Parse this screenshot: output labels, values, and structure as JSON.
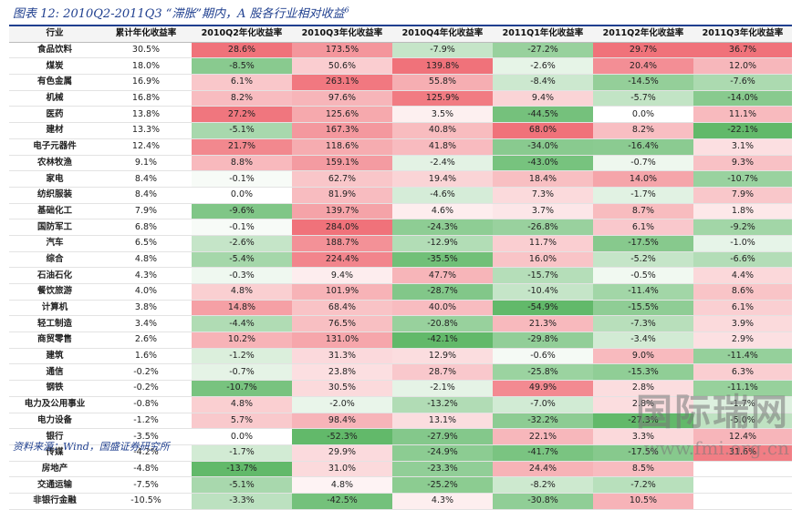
{
  "title": "图表 12: 2010Q2-2011Q3 “滞胀”期内，A 股各行业相对收益",
  "title_sup": "6",
  "source": "资料来源：Wind，国盛证券研究所",
  "watermark": {
    "logo_text": "国际瑞网",
    "sub_text": "www.fmi.org.cn"
  },
  "colors": {
    "pos_max": "#f0727a",
    "neg_max": "#62b96a",
    "title": "#1f3f8f"
  },
  "headers": [
    "行业",
    "累计年化收益率",
    "2010Q2年化收益率",
    "2010Q3年化收益率",
    "2010Q4年化收益率",
    "2011Q1年化收益率",
    "2011Q2年化收益率",
    "2011Q3年化收益率"
  ],
  "rows": [
    [
      "食品饮料",
      "30.5%",
      "28.6%",
      "173.5%",
      "-7.9%",
      "-27.2%",
      "29.7%",
      "36.7%"
    ],
    [
      "煤炭",
      "18.0%",
      "-8.5%",
      "50.6%",
      "139.8%",
      "-2.6%",
      "20.4%",
      "12.0%"
    ],
    [
      "有色金属",
      "16.9%",
      "6.1%",
      "263.1%",
      "55.8%",
      "-8.4%",
      "-14.5%",
      "-7.6%"
    ],
    [
      "机械",
      "16.8%",
      "8.2%",
      "97.6%",
      "125.9%",
      "9.4%",
      "-5.7%",
      "-14.0%"
    ],
    [
      "医药",
      "13.8%",
      "27.2%",
      "125.6%",
      "3.5%",
      "-44.5%",
      "0.0%",
      "11.1%"
    ],
    [
      "建材",
      "13.3%",
      "-5.1%",
      "167.3%",
      "40.8%",
      "68.0%",
      "8.2%",
      "-22.1%"
    ],
    [
      "电子元器件",
      "12.4%",
      "21.7%",
      "118.6%",
      "41.8%",
      "-34.0%",
      "-16.4%",
      "3.1%"
    ],
    [
      "农林牧渔",
      "9.1%",
      "8.8%",
      "159.1%",
      "-2.4%",
      "-43.0%",
      "-0.7%",
      "9.3%"
    ],
    [
      "家电",
      "8.4%",
      "-0.1%",
      "62.7%",
      "19.4%",
      "18.4%",
      "14.0%",
      "-10.7%"
    ],
    [
      "纺织服装",
      "8.4%",
      "0.0%",
      "81.9%",
      "-4.6%",
      "7.3%",
      "-1.7%",
      "7.9%"
    ],
    [
      "基础化工",
      "7.9%",
      "-9.6%",
      "139.7%",
      "4.6%",
      "3.7%",
      "8.7%",
      "1.8%"
    ],
    [
      "国防军工",
      "6.8%",
      "-0.1%",
      "284.0%",
      "-24.3%",
      "-26.8%",
      "6.1%",
      "-9.2%"
    ],
    [
      "汽车",
      "6.5%",
      "-2.6%",
      "188.7%",
      "-12.9%",
      "11.7%",
      "-17.5%",
      "-1.0%"
    ],
    [
      "综合",
      "4.8%",
      "-5.4%",
      "224.4%",
      "-35.5%",
      "16.0%",
      "-5.2%",
      "-6.6%"
    ],
    [
      "石油石化",
      "4.3%",
      "-0.3%",
      "9.4%",
      "47.7%",
      "-15.7%",
      "-0.5%",
      "4.4%"
    ],
    [
      "餐饮旅游",
      "4.0%",
      "4.8%",
      "101.9%",
      "-28.7%",
      "-10.4%",
      "-11.4%",
      "8.6%"
    ],
    [
      "计算机",
      "3.8%",
      "14.8%",
      "68.4%",
      "40.0%",
      "-54.9%",
      "-15.5%",
      "6.1%"
    ],
    [
      "轻工制造",
      "3.4%",
      "-4.4%",
      "76.5%",
      "-20.8%",
      "21.3%",
      "-7.3%",
      "3.9%"
    ],
    [
      "商贸零售",
      "2.6%",
      "10.2%",
      "131.0%",
      "-42.1%",
      "-29.8%",
      "-3.4%",
      "2.9%"
    ],
    [
      "建筑",
      "1.6%",
      "-1.2%",
      "31.3%",
      "12.9%",
      "-0.6%",
      "9.0%",
      "-11.4%"
    ],
    [
      "通信",
      "-0.2%",
      "-0.7%",
      "23.8%",
      "28.7%",
      "-25.8%",
      "-15.3%",
      "6.3%"
    ],
    [
      "钢铁",
      "-0.2%",
      "-10.7%",
      "30.5%",
      "-2.1%",
      "49.9%",
      "2.8%",
      "-11.1%"
    ],
    [
      "电力及公用事业",
      "-0.8%",
      "4.8%",
      "-2.0%",
      "-13.2%",
      "-7.0%",
      "2.8%",
      "-1.7%"
    ],
    [
      "电力设备",
      "-1.2%",
      "5.7%",
      "98.4%",
      "13.1%",
      "-32.2%",
      "-27.3%",
      "-5.0%"
    ],
    [
      "银行",
      "-3.5%",
      "0.0%",
      "-52.3%",
      "-27.9%",
      "22.1%",
      "3.3%",
      "12.4%"
    ],
    [
      "传媒",
      "-4.2%",
      "-1.7%",
      "29.9%",
      "-24.9%",
      "-41.7%",
      "-17.5%",
      "31.6%"
    ],
    [
      "房地产",
      "-4.8%",
      "-13.7%",
      "31.0%",
      "-23.3%",
      "24.4%",
      "8.5%",
      ""
    ],
    [
      "交通运输",
      "-7.5%",
      "-5.1%",
      "4.8%",
      "-25.2%",
      "-8.2%",
      "-7.2%",
      ""
    ],
    [
      "非银行金融",
      "-10.5%",
      "-3.3%",
      "-42.5%",
      "4.3%",
      "-30.8%",
      "10.5%",
      ""
    ]
  ]
}
